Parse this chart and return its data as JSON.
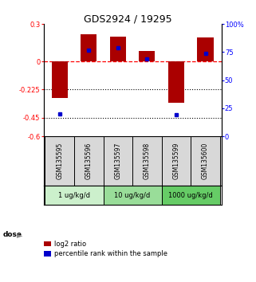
{
  "title": "GDS2924 / 19295",
  "samples": [
    "GSM135595",
    "GSM135596",
    "GSM135597",
    "GSM135598",
    "GSM135599",
    "GSM135600"
  ],
  "log2_ratios": [
    -0.29,
    0.215,
    0.2,
    0.085,
    -0.33,
    0.19
  ],
  "percentile_ranks": [
    20,
    77,
    79,
    69,
    19,
    74
  ],
  "dose_groups": [
    {
      "label": "1 ug/kg/d",
      "samples": [
        0,
        1
      ],
      "color": "#ccf0cc"
    },
    {
      "label": "10 ug/kg/d",
      "samples": [
        2,
        3
      ],
      "color": "#99dd99"
    },
    {
      "label": "1000 ug/kg/d",
      "samples": [
        4,
        5
      ],
      "color": "#66cc66"
    }
  ],
  "bar_color": "#aa0000",
  "dot_color": "#0000cc",
  "left_ylim": [
    -0.6,
    0.3
  ],
  "right_ylim": [
    0,
    100
  ],
  "left_yticks": [
    0.3,
    0,
    -0.225,
    -0.45,
    -0.6
  ],
  "left_yticklabels": [
    "0.3",
    "0",
    "-0.225",
    "-0.45",
    "-0.6"
  ],
  "right_yticks": [
    100,
    75,
    50,
    25,
    0
  ],
  "right_yticklabels": [
    "100%",
    "75",
    "50",
    "25",
    "0"
  ],
  "hlines": [
    -0.225,
    -0.45
  ],
  "bar_width": 0.55,
  "dot_size": 12,
  "legend_red": "log2 ratio",
  "legend_blue": "percentile rank within the sample",
  "sample_bg": "#d8d8d8"
}
